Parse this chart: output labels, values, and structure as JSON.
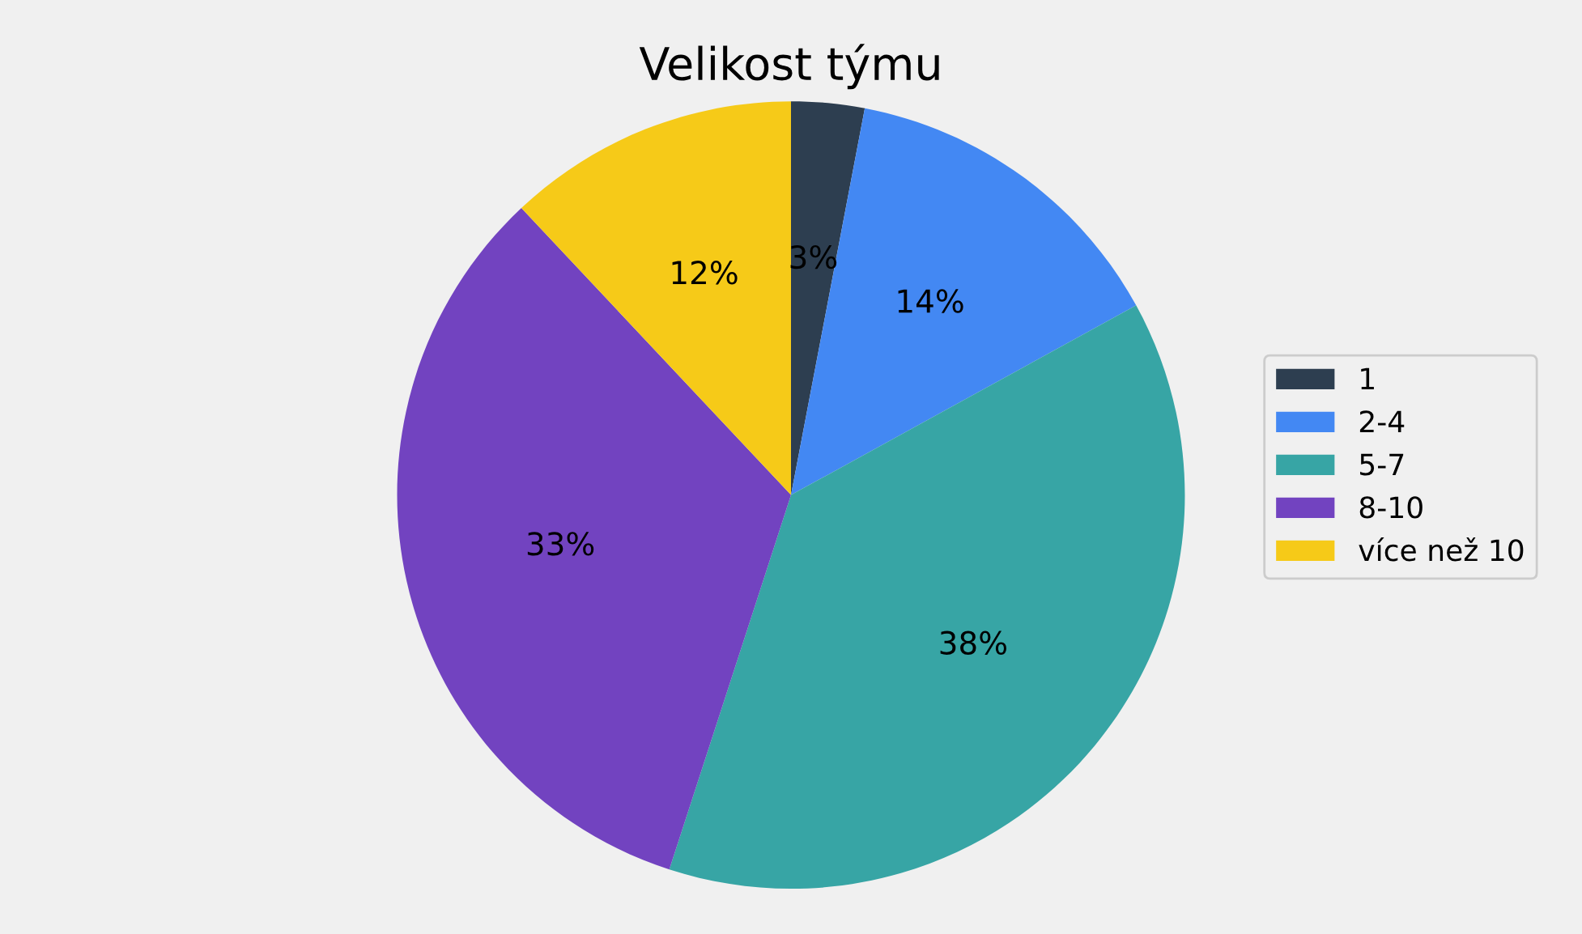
{
  "chart_data": {
    "type": "pie",
    "title": "Velikost týmu",
    "categories": [
      "1",
      "2-4",
      "5-7",
      "8-10",
      "více než 10"
    ],
    "values": [
      3,
      14,
      38,
      33,
      12
    ],
    "value_labels": [
      "3%",
      "14%",
      "38%",
      "33%",
      "12%"
    ],
    "colors": [
      "#2d3e50",
      "#4388f3",
      "#37a5a5",
      "#7243c0",
      "#f6ca18"
    ],
    "legend": "right"
  }
}
